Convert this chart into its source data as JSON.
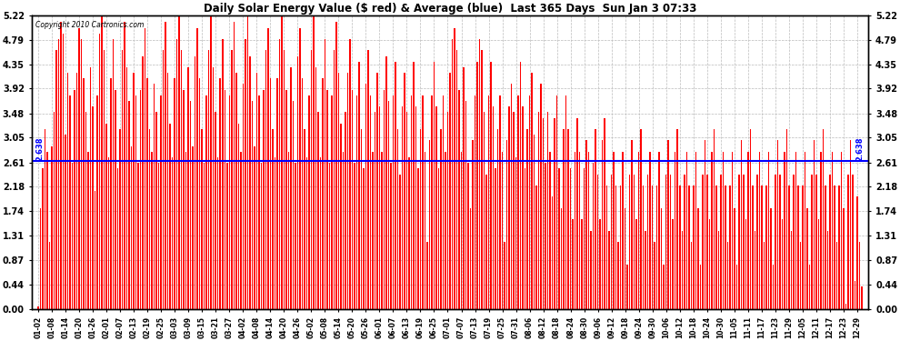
{
  "title": "Daily Solar Energy Value ($ red) & Average (blue)  Last 365 Days  Sun Jan 3 07:33",
  "copyright_text": "Copyright 2010 Cartronics.com",
  "average_value": 2.638,
  "bar_color": "#ff0000",
  "avg_line_color": "#0000ff",
  "background_color": "#ffffff",
  "grid_color": "#bbbbbb",
  "ylim": [
    0.0,
    5.22
  ],
  "yticks": [
    0.0,
    0.44,
    0.87,
    1.31,
    1.74,
    2.18,
    2.61,
    3.05,
    3.48,
    3.92,
    4.35,
    4.79,
    5.22
  ],
  "x_labels": [
    "01-02",
    "01-08",
    "01-14",
    "01-20",
    "01-26",
    "02-01",
    "02-07",
    "02-13",
    "02-19",
    "02-25",
    "03-03",
    "03-09",
    "03-15",
    "03-21",
    "03-27",
    "04-02",
    "04-08",
    "04-14",
    "04-20",
    "04-26",
    "05-02",
    "05-08",
    "05-14",
    "05-20",
    "05-26",
    "06-01",
    "06-07",
    "06-13",
    "06-19",
    "06-25",
    "07-01",
    "07-07",
    "07-13",
    "07-19",
    "07-25",
    "07-31",
    "08-06",
    "08-12",
    "08-18",
    "08-24",
    "08-30",
    "09-06",
    "09-12",
    "09-18",
    "09-24",
    "09-30",
    "10-06",
    "10-12",
    "10-18",
    "10-24",
    "10-30",
    "11-05",
    "11-11",
    "11-17",
    "11-23",
    "11-29",
    "12-05",
    "12-11",
    "12-17",
    "12-23",
    "12-29"
  ],
  "values": [
    0.05,
    1.8,
    2.5,
    3.2,
    2.8,
    1.2,
    2.9,
    3.5,
    4.6,
    4.8,
    5.1,
    4.9,
    3.1,
    4.2,
    3.8,
    2.6,
    3.9,
    4.2,
    5.0,
    4.8,
    4.1,
    3.5,
    2.8,
    4.3,
    3.6,
    2.1,
    3.8,
    4.9,
    5.2,
    4.6,
    3.3,
    2.7,
    4.1,
    4.8,
    3.9,
    2.5,
    3.2,
    4.6,
    5.1,
    4.3,
    3.7,
    2.9,
    4.2,
    3.8,
    2.6,
    3.9,
    4.5,
    5.0,
    4.1,
    3.2,
    2.8,
    4.0,
    3.5,
    2.6,
    3.8,
    4.6,
    5.1,
    4.2,
    3.3,
    2.7,
    4.1,
    4.8,
    5.2,
    4.6,
    3.9,
    2.8,
    4.3,
    3.7,
    2.9,
    4.5,
    5.0,
    4.1,
    3.2,
    2.6,
    3.8,
    4.6,
    5.2,
    4.3,
    3.5,
    2.7,
    4.1,
    4.8,
    3.9,
    2.6,
    3.8,
    4.6,
    5.1,
    4.2,
    3.3,
    2.8,
    4.0,
    4.8,
    5.2,
    4.5,
    3.7,
    2.9,
    4.2,
    3.8,
    2.6,
    3.9,
    4.6,
    5.0,
    4.1,
    3.2,
    2.7,
    4.1,
    4.8,
    5.2,
    4.6,
    3.9,
    2.8,
    4.3,
    3.7,
    2.6,
    4.5,
    5.0,
    4.1,
    3.2,
    2.7,
    3.8,
    4.6,
    5.2,
    4.3,
    3.5,
    2.7,
    4.1,
    4.8,
    3.9,
    2.6,
    3.8,
    4.6,
    5.1,
    4.2,
    3.3,
    2.8,
    3.5,
    4.2,
    4.8,
    3.9,
    2.6,
    3.8,
    4.4,
    3.2,
    2.5,
    4.0,
    4.6,
    3.8,
    2.8,
    3.5,
    4.2,
    3.6,
    2.8,
    3.9,
    4.5,
    3.7,
    2.6,
    3.8,
    4.4,
    3.2,
    2.4,
    3.6,
    4.2,
    3.5,
    2.7,
    3.8,
    4.4,
    3.6,
    2.5,
    3.2,
    3.8,
    2.8,
    1.2,
    3.0,
    3.8,
    4.4,
    3.6,
    2.5,
    3.2,
    3.8,
    2.8,
    3.5,
    4.2,
    4.8,
    5.0,
    4.6,
    3.9,
    2.8,
    4.3,
    3.7,
    2.6,
    1.8,
    3.0,
    3.8,
    4.4,
    4.8,
    4.6,
    3.5,
    2.4,
    3.8,
    4.4,
    3.6,
    2.5,
    3.2,
    3.8,
    2.8,
    1.2,
    3.0,
    3.6,
    4.0,
    3.5,
    2.7,
    3.8,
    4.4,
    3.6,
    2.5,
    3.2,
    3.8,
    4.2,
    3.1,
    2.2,
    3.5,
    4.0,
    3.4,
    2.6,
    3.5,
    2.8,
    2.0,
    3.4,
    3.8,
    2.5,
    1.8,
    3.2,
    3.8,
    3.2,
    2.5,
    1.6,
    2.8,
    3.4,
    2.8,
    1.6,
    2.5,
    3.0,
    2.8,
    1.4,
    2.6,
    3.2,
    2.4,
    1.6,
    3.0,
    3.4,
    2.2,
    1.4,
    2.4,
    2.8,
    2.2,
    1.2,
    2.2,
    2.8,
    1.8,
    0.8,
    2.4,
    3.0,
    2.4,
    1.6,
    2.8,
    3.2,
    2.2,
    1.4,
    2.4,
    2.8,
    2.2,
    1.2,
    2.2,
    2.8,
    1.8,
    0.8,
    2.4,
    3.0,
    2.4,
    1.6,
    2.8,
    3.2,
    2.2,
    1.4,
    2.4,
    2.8,
    2.2,
    1.2,
    2.2,
    2.8,
    1.8,
    0.8,
    2.4,
    3.0,
    2.4,
    1.6,
    2.8,
    3.2,
    2.2,
    1.4,
    2.4,
    2.8,
    2.2,
    1.2,
    2.2,
    2.8,
    1.8,
    0.8,
    2.4,
    3.0,
    2.4,
    1.6,
    2.8,
    3.2,
    2.2,
    1.4,
    2.4,
    2.8,
    2.2,
    1.2,
    2.2,
    2.8,
    1.8,
    0.8,
    2.4,
    3.0,
    2.4,
    1.6,
    2.8,
    3.2,
    2.2,
    1.4,
    2.4,
    2.8,
    2.2,
    1.2,
    2.2,
    2.8,
    1.8,
    0.8,
    2.4,
    3.0,
    2.4,
    1.6,
    2.8,
    3.2,
    2.2,
    1.4,
    2.4,
    2.8,
    2.2,
    1.2,
    2.2,
    2.8,
    1.8,
    0.1,
    2.4,
    3.0,
    2.4,
    0.5,
    2.0,
    1.2,
    0.4
  ]
}
